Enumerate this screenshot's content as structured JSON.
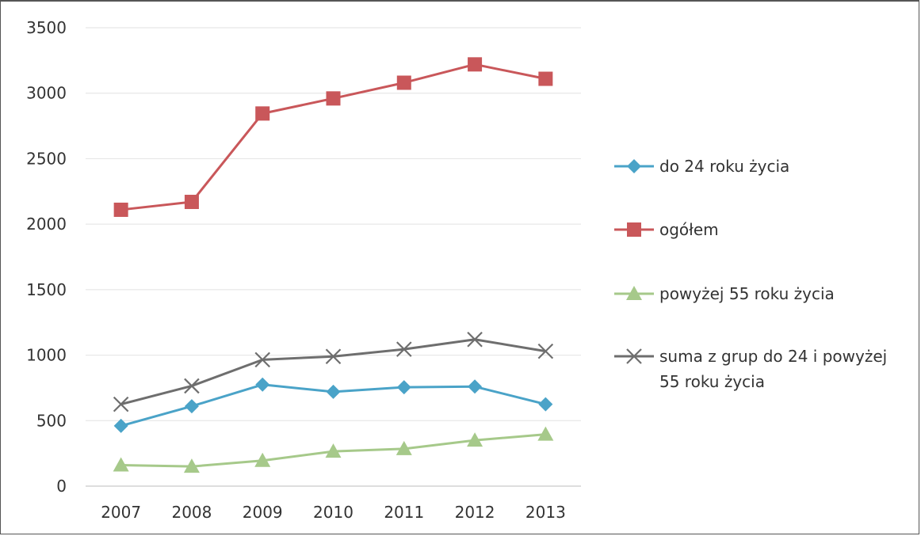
{
  "chart_data": {
    "type": "line",
    "title": "",
    "xlabel": "",
    "ylabel": "",
    "categories": [
      "2007",
      "2008",
      "2009",
      "2010",
      "2011",
      "2012",
      "2013"
    ],
    "ylim": [
      0,
      3500
    ],
    "yticks": [
      "0",
      "500",
      "1000",
      "1500",
      "2000",
      "2500",
      "3000",
      "3500"
    ],
    "grid": "horizontal",
    "legend_position": "right",
    "series": [
      {
        "name": "do 24 roku życia",
        "values": [
          460,
          610,
          775,
          720,
          755,
          760,
          625
        ],
        "color": "#4aa3c8",
        "marker": "diamond"
      },
      {
        "name": "ogółem",
        "values": [
          2110,
          2170,
          2845,
          2960,
          3080,
          3220,
          3110
        ],
        "color": "#c9575a",
        "marker": "square"
      },
      {
        "name": "powyżej 55 roku życia",
        "values": [
          160,
          150,
          195,
          265,
          285,
          350,
          395
        ],
        "color": "#a6c98a",
        "marker": "triangle"
      },
      {
        "name": "suma z grup do 24 i powyżej 55 roku życia",
        "legend_lines": [
          "suma z grup do 24 i powyżej",
          "55 roku życia"
        ],
        "values": [
          625,
          765,
          965,
          990,
          1045,
          1120,
          1030
        ],
        "color": "#6e6e6e",
        "marker": "x"
      }
    ]
  }
}
